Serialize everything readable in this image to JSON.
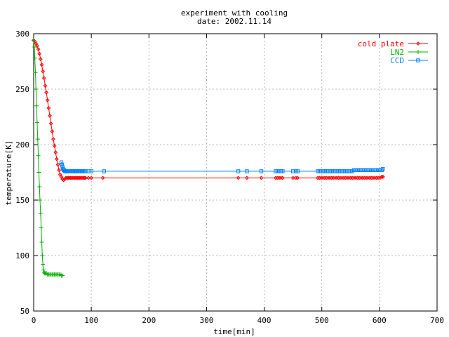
{
  "chart_data": {
    "type": "line",
    "title": "experiment with cooling",
    "subtitle": "date: 2002.11.14",
    "xlabel": "time[min]",
    "ylabel": "temperature[K]",
    "xlim": [
      0,
      700
    ],
    "ylim": [
      50,
      300
    ],
    "xticks": [
      0,
      100,
      200,
      300,
      400,
      500,
      600,
      700
    ],
    "yticks": [
      50,
      100,
      150,
      200,
      250,
      300
    ],
    "grid": true,
    "legend_position": "top-right",
    "series": [
      {
        "name": "cold plate",
        "color": "#ff0000",
        "marker": "diamond",
        "x": [
          0,
          2,
          4,
          6,
          8,
          10,
          12,
          14,
          16,
          18,
          20,
          22,
          24,
          26,
          28,
          30,
          32,
          34,
          36,
          38,
          40,
          42,
          44,
          46,
          48,
          50,
          52,
          54,
          56,
          58,
          60,
          62,
          64,
          66,
          68,
          70,
          72,
          74,
          76,
          78,
          80,
          82,
          84,
          86,
          88,
          90,
          95,
          100,
          120,
          355,
          370,
          395,
          420,
          423,
          426,
          429,
          432,
          450,
          455,
          458,
          493,
          496,
          499,
          502,
          505,
          508,
          511,
          514,
          517,
          520,
          523,
          526,
          529,
          532,
          535,
          538,
          541,
          544,
          547,
          550,
          553,
          556,
          559,
          562,
          565,
          568,
          571,
          574,
          577,
          580,
          583,
          586,
          589,
          592,
          595,
          598,
          601,
          604,
          606
        ],
        "y": [
          294,
          293,
          291,
          289,
          286,
          282,
          277,
          272,
          266,
          260,
          253,
          247,
          240,
          233,
          226,
          219,
          212,
          205,
          199,
          193,
          187,
          182,
          177,
          173,
          171,
          169,
          168,
          169,
          170,
          170,
          170,
          170,
          170,
          170,
          170,
          170,
          170,
          170,
          170,
          170,
          170,
          170,
          170,
          170,
          170,
          170,
          170,
          170,
          170,
          170,
          170,
          170,
          170,
          170,
          170,
          170,
          170,
          170,
          170,
          170,
          170,
          170,
          170,
          170,
          170,
          170,
          170,
          170,
          170,
          170,
          170,
          170,
          170,
          170,
          170,
          170,
          170,
          170,
          170,
          170,
          170,
          170,
          170,
          170,
          170,
          170,
          170,
          170,
          170,
          170,
          170,
          170,
          170,
          170,
          170,
          170,
          170,
          171,
          171
        ]
      },
      {
        "name": "LN2",
        "color": "#00b000",
        "marker": "plus",
        "x": [
          0,
          1,
          2,
          3,
          4,
          5,
          6,
          7,
          8,
          9,
          10,
          11,
          12,
          13,
          14,
          15,
          16,
          17,
          18,
          19,
          20,
          22,
          24,
          26,
          28,
          30,
          32,
          34,
          36,
          38,
          40,
          42,
          44,
          46,
          48,
          50
        ],
        "y": [
          294,
          288,
          278,
          265,
          250,
          235,
          220,
          205,
          190,
          175,
          162,
          150,
          138,
          125,
          112,
          100,
          92,
          87,
          85,
          84,
          84,
          84,
          83,
          83,
          83,
          83,
          83,
          83,
          83,
          83,
          83,
          83,
          83,
          83,
          82,
          82
        ]
      },
      {
        "name": "CCD",
        "color": "#0080ff",
        "marker": "square",
        "x": [
          48,
          49,
          50,
          51,
          52,
          53,
          54,
          55,
          56,
          57,
          58,
          60,
          62,
          64,
          66,
          68,
          70,
          72,
          74,
          76,
          78,
          80,
          82,
          84,
          86,
          88,
          90,
          95,
          100,
          122,
          355,
          370,
          395,
          420,
          423,
          426,
          429,
          432,
          450,
          455,
          458,
          493,
          496,
          499,
          502,
          505,
          508,
          511,
          514,
          517,
          520,
          523,
          526,
          529,
          532,
          535,
          538,
          541,
          544,
          547,
          550,
          553,
          556,
          559,
          562,
          565,
          568,
          571,
          574,
          577,
          580,
          583,
          586,
          589,
          592,
          595,
          598,
          601,
          604,
          606
        ],
        "y": [
          184,
          182,
          180,
          178,
          177,
          177,
          176,
          176,
          176,
          176,
          176,
          176,
          176,
          176,
          176,
          176,
          176,
          176,
          176,
          176,
          176,
          176,
          176,
          176,
          176,
          176,
          176,
          176,
          176,
          176,
          176,
          176,
          176,
          176,
          176,
          176,
          176,
          176,
          176,
          176,
          176,
          176,
          176,
          176,
          176,
          176,
          176,
          176,
          176,
          176,
          176,
          176,
          176,
          176,
          176,
          176,
          176,
          176,
          176,
          176,
          176,
          176,
          177,
          177,
          177,
          177,
          177,
          177,
          177,
          177,
          177,
          177,
          177,
          177,
          177,
          177,
          177,
          177,
          177,
          178
        ]
      }
    ]
  }
}
